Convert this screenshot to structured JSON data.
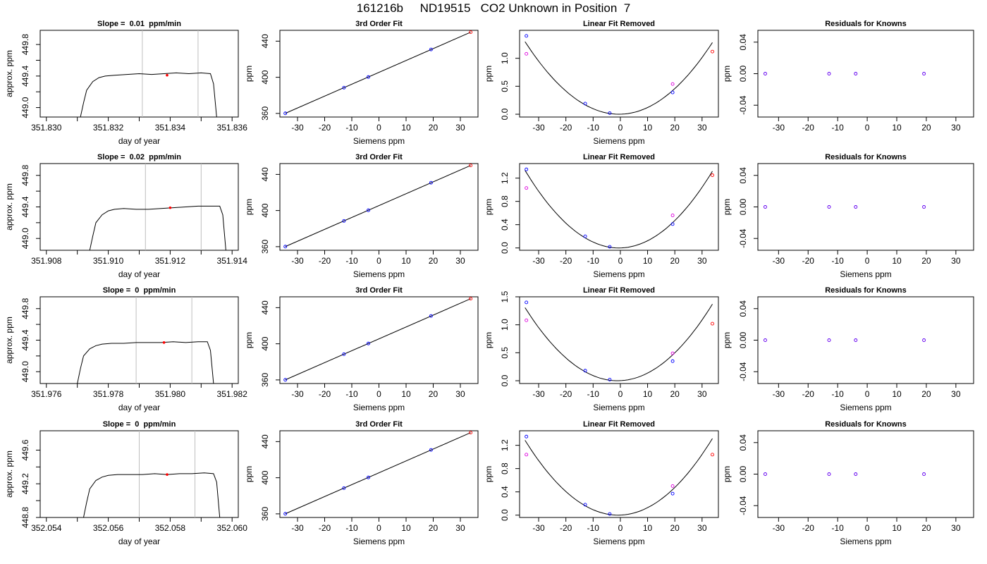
{
  "figure": {
    "title": "161216b     ND19515   CO2 Unknown in Position  7"
  },
  "chart_data": [
    {
      "type": "line",
      "title": "Slope =  0.01  ppm/min",
      "xlabel": "day of year",
      "ylabel": "approx. ppm",
      "xlim": [
        351.8298,
        351.8362
      ],
      "ylim": [
        448.88,
        449.98
      ],
      "xticks": [
        "351.830",
        "351.832",
        "351.834",
        "351.836"
      ],
      "yticks": [
        "449.0",
        "449.4",
        "449.8"
      ],
      "vlines": [
        351.8331,
        351.8349
      ],
      "marker": {
        "x": 351.8339,
        "y": 449.41
      },
      "series": [
        {
          "x": [
            351.8311,
            351.8312,
            351.8313,
            351.8315,
            351.8317,
            351.8319,
            351.8322,
            351.8326,
            351.833,
            351.8334,
            351.8338,
            351.8342,
            351.8346,
            351.835,
            351.8353,
            351.8354,
            351.8355
          ],
          "y": [
            448.88,
            449.06,
            449.22,
            449.33,
            449.38,
            449.4,
            449.41,
            449.42,
            449.43,
            449.42,
            449.43,
            449.44,
            449.43,
            449.44,
            449.43,
            449.3,
            448.88
          ]
        }
      ]
    },
    {
      "type": "scatter",
      "title": "3rd Order Fit",
      "xlabel": "Siemens ppm",
      "ylabel": "ppm",
      "xlim": [
        -36.5,
        36.5
      ],
      "ylim": [
        356,
        452
      ],
      "xticks": [
        -30,
        -20,
        -10,
        0,
        10,
        20,
        30
      ],
      "yticks": [
        360,
        400,
        440
      ],
      "fit_line": {
        "x": [
          -34.5,
          33.8
        ],
        "y": [
          360.1,
          449.9
        ]
      },
      "series": [
        {
          "x": [
            -34.5,
            -12.9,
            -3.9,
            19.2
          ],
          "y": [
            360.1,
            388.5,
            400.3,
            430.8
          ]
        },
        {
          "x": [
            33.8
          ],
          "y": [
            449.9
          ]
        }
      ]
    },
    {
      "type": "scatter",
      "title": "Linear Fit Removed",
      "xlabel": "Siemens ppm",
      "ylabel": "ppm",
      "xlim": [
        -37,
        36
      ],
      "ylim": [
        -0.05,
        1.5
      ],
      "xticks": [
        -30,
        -20,
        -10,
        0,
        10,
        20,
        30
      ],
      "yticks": [
        "0.0",
        "0.5",
        "1.0"
      ],
      "curve": {
        "a": 0.00109,
        "x0": -0.5,
        "x": [
          -35,
          33.8
        ]
      },
      "series": [
        {
          "x": [
            -34.5,
            -12.9,
            -3.9,
            19.2
          ],
          "y": [
            1.4,
            0.19,
            0.02,
            0.39
          ]
        },
        {
          "x": [
            33.8
          ],
          "y": [
            1.12
          ]
        },
        {
          "x": [
            -34.5,
            19.2
          ],
          "y": [
            1.08,
            0.54
          ]
        }
      ]
    },
    {
      "type": "scatter",
      "title": "Residuals for Knowns",
      "xlabel": "",
      "ylabel": "ppm",
      "xlim": [
        -37,
        36
      ],
      "ylim": [
        -0.055,
        0.055
      ],
      "xticks": [
        -30,
        -20,
        -10,
        0,
        10,
        20,
        30
      ],
      "yticks": [
        "-0.04",
        "0.00",
        "0.04"
      ],
      "series": [
        {
          "x": [
            -34.5,
            -12.9,
            -3.9,
            19.2
          ],
          "y": [
            0,
            0,
            0,
            0
          ]
        }
      ]
    },
    {
      "type": "line",
      "title": "Slope =  0.02  ppm/min",
      "xlabel": "day of year",
      "ylabel": "approx. ppm",
      "xlim": [
        351.9078,
        351.9142
      ],
      "ylim": [
        448.85,
        449.95
      ],
      "xticks": [
        "351.908",
        "351.910",
        "351.912",
        "351.914"
      ],
      "yticks": [
        "449.0",
        "449.4",
        "449.8"
      ],
      "vlines": [
        351.9112,
        351.913
      ],
      "marker": {
        "x": 351.912,
        "y": 449.39
      },
      "series": [
        {
          "x": [
            351.9094,
            351.9095,
            351.9096,
            351.9098,
            351.91,
            351.9102,
            351.9105,
            351.9109,
            351.9113,
            351.9117,
            351.9121,
            351.9125,
            351.9129,
            351.9133,
            351.9136,
            351.9137,
            351.9138
          ],
          "y": [
            448.85,
            449.03,
            449.2,
            449.3,
            449.35,
            449.37,
            449.38,
            449.37,
            449.37,
            449.38,
            449.39,
            449.4,
            449.41,
            449.41,
            449.41,
            449.3,
            448.85
          ]
        }
      ]
    },
    {
      "type": "scatter",
      "title": "3rd Order Fit",
      "xlabel": "Siemens ppm",
      "ylabel": "ppm",
      "xlim": [
        -36.5,
        36.5
      ],
      "ylim": [
        356,
        452
      ],
      "xticks": [
        -30,
        -20,
        -10,
        0,
        10,
        20,
        30
      ],
      "yticks": [
        360,
        400,
        440
      ],
      "fit_line": {
        "x": [
          -34.5,
          33.8
        ],
        "y": [
          360.1,
          449.9
        ]
      },
      "series": [
        {
          "x": [
            -34.5,
            -12.9,
            -3.9,
            19.2
          ],
          "y": [
            360.1,
            388.5,
            400.3,
            430.8
          ]
        },
        {
          "x": [
            33.8
          ],
          "y": [
            449.9
          ]
        }
      ]
    },
    {
      "type": "scatter",
      "title": "Linear Fit Removed",
      "xlabel": "Siemens ppm",
      "ylabel": "ppm",
      "xlim": [
        -37,
        36
      ],
      "ylim": [
        -0.04,
        1.45
      ],
      "xticks": [
        -30,
        -20,
        -10,
        0,
        10,
        20,
        30
      ],
      "yticks": [
        "0.0",
        "0.4",
        "0.8",
        "1.2"
      ],
      "curve": {
        "a": 0.00112,
        "x0": -0.5,
        "x": [
          -35,
          33.8
        ]
      },
      "series": [
        {
          "x": [
            -34.5,
            -12.9,
            -3.9,
            19.2
          ],
          "y": [
            1.35,
            0.2,
            0.02,
            0.41
          ]
        },
        {
          "x": [
            33.8
          ],
          "y": [
            1.25
          ]
        },
        {
          "x": [
            -34.5,
            19.2
          ],
          "y": [
            1.03,
            0.56
          ]
        }
      ]
    },
    {
      "type": "scatter",
      "title": "Residuals for Knowns",
      "xlabel": "Siemens ppm",
      "ylabel": "ppm",
      "xlim": [
        -37,
        36
      ],
      "ylim": [
        -0.055,
        0.055
      ],
      "xticks": [
        -30,
        -20,
        -10,
        0,
        10,
        20,
        30
      ],
      "yticks": [
        "-0.04",
        "0.00",
        "0.04"
      ],
      "series": [
        {
          "x": [
            -34.5,
            -12.9,
            -3.9,
            19.2
          ],
          "y": [
            0,
            0,
            0,
            0
          ]
        }
      ]
    },
    {
      "type": "line",
      "title": "Slope =  0  ppm/min",
      "xlabel": "day of year",
      "ylabel": "approx. ppm",
      "xlim": [
        351.9758,
        351.9822
      ],
      "ylim": [
        448.85,
        449.95
      ],
      "xticks": [
        "351.976",
        "351.978",
        "351.980",
        "351.982"
      ],
      "yticks": [
        "449.0",
        "449.4",
        "449.8"
      ],
      "vlines": [
        351.9789,
        351.9807
      ],
      "marker": {
        "x": 351.9798,
        "y": 449.37
      },
      "series": [
        {
          "x": [
            351.977,
            351.9771,
            351.9772,
            351.9774,
            351.9776,
            351.9778,
            351.9781,
            351.9785,
            351.9789,
            351.9793,
            351.9797,
            351.9801,
            351.9805,
            351.9809,
            351.9812,
            351.9813,
            351.9814
          ],
          "y": [
            448.85,
            449.04,
            449.2,
            449.29,
            449.33,
            449.35,
            449.36,
            449.36,
            449.37,
            449.37,
            449.37,
            449.38,
            449.37,
            449.38,
            449.38,
            449.27,
            448.85
          ]
        }
      ]
    },
    {
      "type": "scatter",
      "title": "3rd Order Fit",
      "xlabel": "Siemens ppm",
      "ylabel": "ppm",
      "xlim": [
        -36.5,
        36.5
      ],
      "ylim": [
        356,
        452
      ],
      "xticks": [
        -30,
        -20,
        -10,
        0,
        10,
        20,
        30
      ],
      "yticks": [
        360,
        400,
        440
      ],
      "fit_line": {
        "x": [
          -34.5,
          33.8
        ],
        "y": [
          360.1,
          449.9
        ]
      },
      "series": [
        {
          "x": [
            -34.5,
            -12.9,
            -3.9,
            19.2
          ],
          "y": [
            360.1,
            388.5,
            400.3,
            430.8
          ]
        },
        {
          "x": [
            33.8
          ],
          "y": [
            449.9
          ]
        }
      ]
    },
    {
      "type": "scatter",
      "title": "Linear Fit Removed",
      "xlabel": "Siemens ppm",
      "ylabel": "ppm",
      "xlim": [
        -37,
        36
      ],
      "ylim": [
        -0.05,
        1.5
      ],
      "xticks": [
        -30,
        -20,
        -10,
        0,
        10,
        20,
        30
      ],
      "yticks": [
        "0.0",
        "0.5",
        "1.0",
        "1.5"
      ],
      "curve": {
        "a": 0.00113,
        "x0": -1.0,
        "x": [
          -35,
          33.8
        ]
      },
      "series": [
        {
          "x": [
            -34.5,
            -12.9,
            -3.9,
            19.2
          ],
          "y": [
            1.4,
            0.18,
            0.02,
            0.35
          ]
        },
        {
          "x": [
            33.8
          ],
          "y": [
            1.02
          ]
        },
        {
          "x": [
            -34.5,
            19.2
          ],
          "y": [
            1.08,
            0.49
          ]
        }
      ]
    },
    {
      "type": "scatter",
      "title": "Residuals for Knowns",
      "xlabel": "Siemens ppm",
      "ylabel": "ppm",
      "xlim": [
        -37,
        36
      ],
      "ylim": [
        -0.055,
        0.055
      ],
      "xticks": [
        -30,
        -20,
        -10,
        0,
        10,
        20,
        30
      ],
      "yticks": [
        "-0.04",
        "0.00",
        "0.04"
      ],
      "series": [
        {
          "x": [
            -34.5,
            -12.9,
            -3.9,
            19.2
          ],
          "y": [
            0,
            0,
            0,
            0
          ]
        }
      ]
    },
    {
      "type": "line",
      "title": "Slope =  0  ppm/min",
      "xlabel": "day of year",
      "ylabel": "approx. ppm",
      "xlim": [
        352.0538,
        352.0602
      ],
      "ylim": [
        448.8,
        449.83
      ],
      "xticks": [
        "352.054",
        "352.056",
        "352.058",
        "352.060"
      ],
      "yticks": [
        "448.8",
        "449.2",
        "449.6"
      ],
      "vlines": [
        352.057,
        352.0588
      ],
      "marker": {
        "x": 352.0579,
        "y": 449.31
      },
      "series": [
        {
          "x": [
            352.0552,
            352.0553,
            352.0554,
            352.0556,
            352.0558,
            352.056,
            352.0563,
            352.0567,
            352.0571,
            352.0575,
            352.0579,
            352.0583,
            352.0587,
            352.0591,
            352.0594,
            352.0595,
            352.0596
          ],
          "y": [
            448.8,
            448.98,
            449.14,
            449.24,
            449.28,
            449.3,
            449.31,
            449.31,
            449.31,
            449.32,
            449.31,
            449.32,
            449.32,
            449.33,
            449.32,
            449.22,
            448.8
          ]
        }
      ]
    },
    {
      "type": "scatter",
      "title": "3rd Order Fit",
      "xlabel": "Siemens ppm",
      "ylabel": "ppm",
      "xlim": [
        -36.5,
        36.5
      ],
      "ylim": [
        356,
        452
      ],
      "xticks": [
        -30,
        -20,
        -10,
        0,
        10,
        20,
        30
      ],
      "yticks": [
        360,
        400,
        440
      ],
      "fit_line": {
        "x": [
          -34.5,
          33.8
        ],
        "y": [
          360.1,
          449.9
        ]
      },
      "series": [
        {
          "x": [
            -34.5,
            -12.9,
            -3.9,
            19.2
          ],
          "y": [
            360.1,
            388.5,
            400.3,
            430.8
          ]
        },
        {
          "x": [
            33.8
          ],
          "y": [
            449.9
          ]
        }
      ]
    },
    {
      "type": "scatter",
      "title": "Linear Fit Removed",
      "xlabel": "Siemens ppm",
      "ylabel": "ppm",
      "xlim": [
        -37,
        36
      ],
      "ylim": [
        -0.04,
        1.45
      ],
      "xticks": [
        -30,
        -20,
        -10,
        0,
        10,
        20,
        30
      ],
      "yticks": [
        "0.0",
        "0.4",
        "0.8",
        "1.2"
      ],
      "curve": {
        "a": 0.0011,
        "x0": -0.8,
        "x": [
          -35,
          33.8
        ]
      },
      "series": [
        {
          "x": [
            -34.5,
            -12.9,
            -3.9,
            19.2
          ],
          "y": [
            1.35,
            0.18,
            0.02,
            0.37
          ]
        },
        {
          "x": [
            33.8
          ],
          "y": [
            1.04
          ]
        },
        {
          "x": [
            -34.5,
            19.2
          ],
          "y": [
            1.04,
            0.5
          ]
        }
      ]
    },
    {
      "type": "scatter",
      "title": "Residuals for Knowns",
      "xlabel": "Siemens ppm",
      "ylabel": "ppm",
      "xlim": [
        -37,
        36
      ],
      "ylim": [
        -0.055,
        0.055
      ],
      "xticks": [
        -30,
        -20,
        -10,
        0,
        10,
        20,
        30
      ],
      "yticks": [
        "-0.04",
        "0.00",
        "0.04"
      ],
      "series": [
        {
          "x": [
            -34.5,
            -12.9,
            -3.9,
            19.2
          ],
          "y": [
            0,
            0,
            0,
            0
          ]
        }
      ]
    }
  ],
  "colors": {
    "frame": "#000000",
    "trace": "#000000",
    "known": "#0000ff",
    "unknown": "#ff0000",
    "removed": "#dd00dd",
    "vline": "#bebebe"
  }
}
